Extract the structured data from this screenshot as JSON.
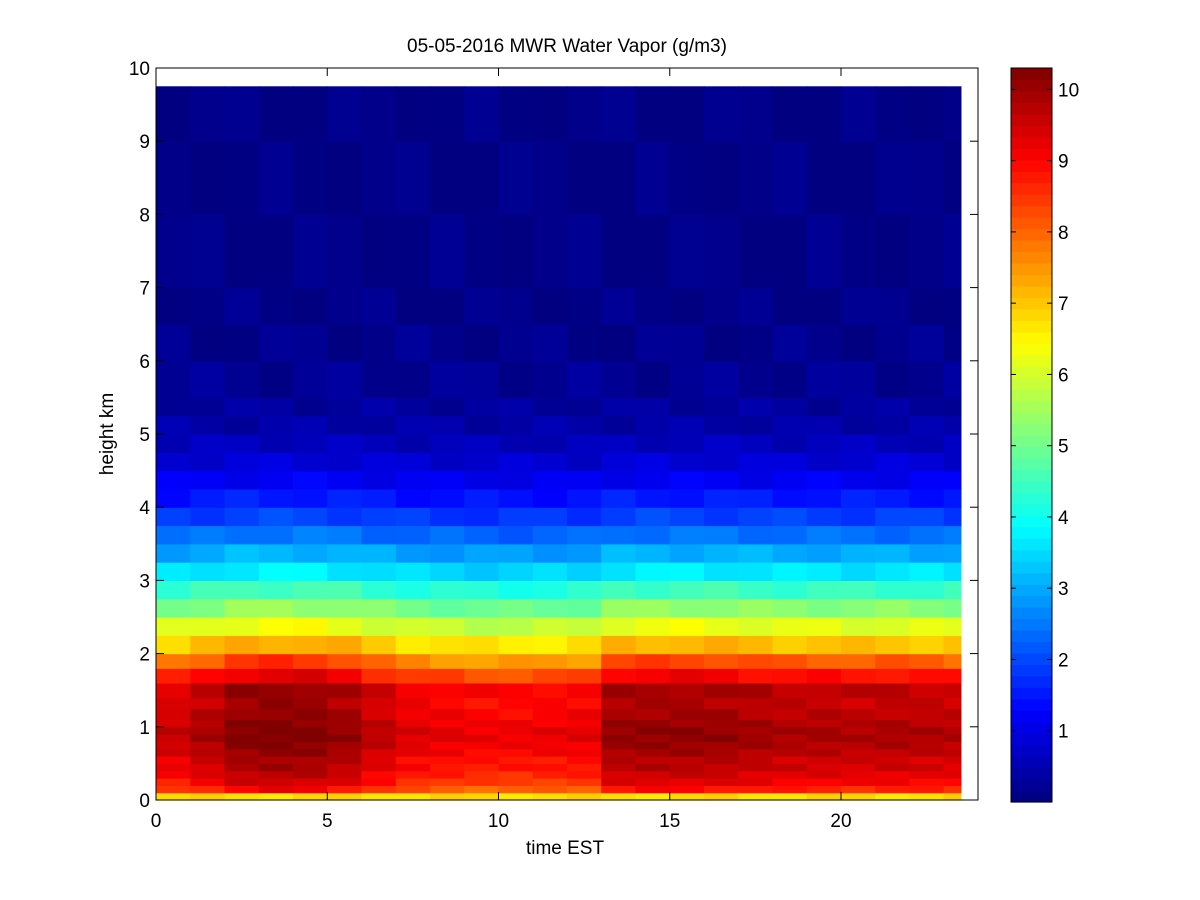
{
  "chart_data": {
    "type": "heatmap",
    "title": "05-05-2016 MWR Water Vapor (g/m3)",
    "xlabel": "time EST",
    "ylabel": "height km",
    "xlim": [
      0,
      24
    ],
    "ylim": [
      0,
      10
    ],
    "x_ticks": [
      "0",
      "5",
      "10",
      "15",
      "20"
    ],
    "y_ticks": [
      "0",
      "1",
      "2",
      "3",
      "4",
      "5",
      "6",
      "7",
      "8",
      "9",
      "10"
    ],
    "colorbar": {
      "colormap": "jet",
      "range": [
        0,
        10.3
      ],
      "ticks": [
        "1",
        "2",
        "3",
        "4",
        "5",
        "6",
        "7",
        "8",
        "9",
        "10"
      ]
    },
    "x_centers": [
      0.5,
      1.5,
      2.5,
      3.5,
      4.5,
      5.5,
      6.5,
      7.5,
      8.5,
      9.5,
      10.5,
      11.5,
      12.5,
      13.5,
      14.5,
      15.5,
      16.5,
      17.5,
      18.5,
      19.5,
      20.5,
      21.5,
      22.5,
      23.5
    ],
    "height_bounds_km": [
      0,
      0.1,
      0.2,
      0.3,
      0.4,
      0.5,
      0.6,
      0.7,
      0.8,
      0.9,
      1.0,
      1.1,
      1.25,
      1.4,
      1.6,
      1.8,
      2.0,
      2.25,
      2.5,
      2.75,
      3.0,
      3.25,
      3.5,
      3.75,
      4.0,
      4.25,
      4.5,
      4.75,
      5.0,
      5.25,
      5.5,
      6.0,
      6.5,
      7.0,
      8.0,
      9.0,
      9.75
    ],
    "base_profile": [
      6.8,
      8.6,
      9.0,
      9.2,
      9.4,
      9.4,
      9.6,
      9.7,
      9.8,
      9.8,
      9.7,
      9.6,
      9.5,
      9.6,
      8.8,
      8.0,
      7.0,
      6.1,
      5.2,
      4.4,
      3.6,
      3.0,
      2.4,
      1.9,
      1.5,
      1.15,
      0.85,
      0.6,
      0.4,
      0.3,
      0.2,
      0.12,
      0.08,
      0.06,
      0.05,
      0.05
    ],
    "time_offsets": [
      -0.2,
      0.1,
      0.45,
      0.55,
      0.5,
      0.3,
      -0.1,
      -0.4,
      -0.5,
      -0.6,
      -0.6,
      -0.55,
      -0.5,
      0.3,
      0.35,
      0.35,
      0.3,
      0.2,
      0.1,
      0.1,
      0.05,
      0.1,
      0.05,
      0.0
    ]
  }
}
